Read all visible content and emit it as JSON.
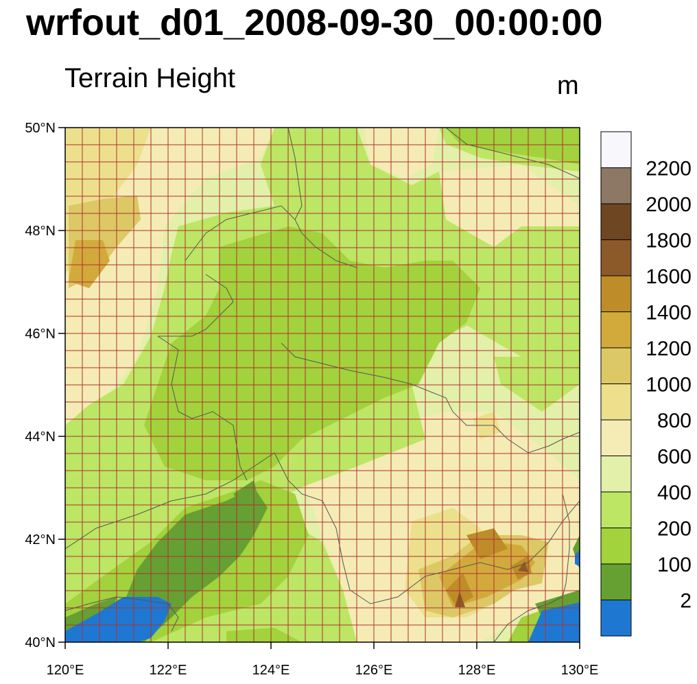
{
  "header": {
    "title": "wrfout_d01_2008-09-30_00:00:00",
    "variable": "Terrain Height",
    "units": "m"
  },
  "map": {
    "lon_range": [
      120,
      130
    ],
    "lat_range": [
      40,
      50
    ],
    "x_ticks": [
      "120°E",
      "122°E",
      "124°E",
      "126°E",
      "128°E",
      "130°E"
    ],
    "y_ticks": [
      "40°N",
      "42°N",
      "44°N",
      "46°N",
      "48°N",
      "50°N"
    ],
    "grid_lines": true,
    "grid_color": "#b03030"
  },
  "colorbar": {
    "levels": [
      "2",
      "100",
      "200",
      "400",
      "600",
      "800",
      "1000",
      "1200",
      "1400",
      "1600",
      "1800",
      "2000",
      "2200"
    ],
    "colors": [
      "#1e78d2",
      "#66a032",
      "#a2d23c",
      "#bce664",
      "#e2f0aa",
      "#f4ecb4",
      "#ece08c",
      "#dcc864",
      "#d2aa3c",
      "#be8c28",
      "#8c5a28",
      "#6e4622",
      "#8c7864",
      "#f8f8fc"
    ]
  },
  "chart_data": {
    "type": "heatmap",
    "title": "wrfout_d01_2008-09-30_00:00:00",
    "subtitle": "Terrain Height",
    "units": "m",
    "xlim": [
      120,
      130
    ],
    "ylim": [
      40,
      50
    ],
    "contour_levels": [
      2,
      100,
      200,
      400,
      600,
      800,
      1000,
      1200,
      1400,
      1600,
      1800,
      2000,
      2200
    ]
  }
}
